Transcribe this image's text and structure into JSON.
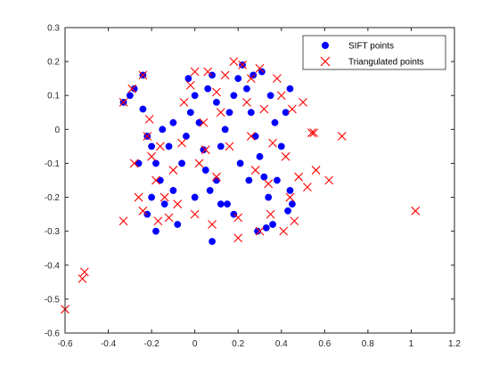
{
  "chart_data": {
    "type": "scatter",
    "title": "",
    "xlabel": "",
    "ylabel": "",
    "xlim": [
      -0.6,
      1.2
    ],
    "ylim": [
      -0.6,
      0.3
    ],
    "xticks": [
      -0.6,
      -0.4,
      -0.2,
      0,
      0.2,
      0.4,
      0.6,
      0.8,
      1,
      1.2
    ],
    "yticks": [
      -0.6,
      -0.5,
      -0.4,
      -0.3,
      -0.2,
      -0.1,
      0,
      0.1,
      0.2,
      0.3
    ],
    "xtick_labels": [
      "-0.6",
      "-0.4",
      "-0.2",
      "0",
      "0.2",
      "0.4",
      "0.6",
      "0.8",
      "1",
      "1.2"
    ],
    "ytick_labels": [
      "-0.6",
      "-0.5",
      "-0.4",
      "-0.3",
      "-0.2",
      "-0.1",
      "0",
      "0.1",
      "0.2",
      "0.3"
    ],
    "grid": false,
    "legend_position": "top-right",
    "series": [
      {
        "name": "SIFT points",
        "marker": "filled-circle",
        "color": "#0000ff",
        "points": [
          [
            -0.33,
            0.08
          ],
          [
            -0.3,
            0.1
          ],
          [
            -0.28,
            0.12
          ],
          [
            -0.24,
            0.16
          ],
          [
            -0.24,
            0.06
          ],
          [
            -0.22,
            -0.02
          ],
          [
            -0.2,
            -0.05
          ],
          [
            -0.18,
            -0.1
          ],
          [
            -0.16,
            -0.15
          ],
          [
            -0.2,
            -0.2
          ],
          [
            -0.22,
            -0.25
          ],
          [
            -0.18,
            -0.3
          ],
          [
            -0.14,
            -0.22
          ],
          [
            -0.1,
            -0.18
          ],
          [
            -0.08,
            -0.28
          ],
          [
            -0.06,
            -0.1
          ],
          [
            -0.04,
            -0.02
          ],
          [
            -0.02,
            0.05
          ],
          [
            0.0,
            0.1
          ],
          [
            0.02,
            0.02
          ],
          [
            0.04,
            -0.06
          ],
          [
            0.05,
            -0.12
          ],
          [
            0.07,
            -0.18
          ],
          [
            0.08,
            -0.33
          ],
          [
            0.1,
            -0.15
          ],
          [
            0.12,
            -0.05
          ],
          [
            0.14,
            0.0
          ],
          [
            0.16,
            0.05
          ],
          [
            0.18,
            0.1
          ],
          [
            0.2,
            0.15
          ],
          [
            0.22,
            0.19
          ],
          [
            0.24,
            0.12
          ],
          [
            0.26,
            0.05
          ],
          [
            0.28,
            -0.02
          ],
          [
            0.3,
            -0.08
          ],
          [
            0.32,
            -0.14
          ],
          [
            0.34,
            -0.2
          ],
          [
            0.29,
            -0.3
          ],
          [
            0.33,
            -0.29
          ],
          [
            0.36,
            -0.28
          ],
          [
            0.38,
            -0.15
          ],
          [
            0.4,
            -0.05
          ],
          [
            0.42,
            0.05
          ],
          [
            0.44,
            0.12
          ],
          [
            0.43,
            -0.24
          ],
          [
            0.44,
            -0.18
          ],
          [
            0.45,
            -0.22
          ],
          [
            -0.03,
            0.15
          ],
          [
            0.0,
            -0.2
          ],
          [
            0.06,
            0.12
          ],
          [
            0.1,
            0.08
          ],
          [
            0.15,
            -0.22
          ],
          [
            0.18,
            -0.25
          ],
          [
            0.21,
            -0.1
          ],
          [
            0.25,
            -0.15
          ],
          [
            0.27,
            0.16
          ],
          [
            0.31,
            0.17
          ],
          [
            0.35,
            0.1
          ],
          [
            0.37,
            0.02
          ],
          [
            -0.12,
            -0.05
          ],
          [
            -0.15,
            0.0
          ],
          [
            -0.26,
            -0.1
          ],
          [
            -0.1,
            0.02
          ],
          [
            0.08,
            0.16
          ],
          [
            0.12,
            -0.22
          ]
        ]
      },
      {
        "name": "Triangulated points",
        "marker": "x",
        "color": "#ff0000",
        "points": [
          [
            -0.6,
            -0.53
          ],
          [
            -0.52,
            -0.44
          ],
          [
            -0.51,
            -0.42
          ],
          [
            -0.33,
            -0.27
          ],
          [
            -0.33,
            0.08
          ],
          [
            -0.29,
            0.12
          ],
          [
            -0.24,
            0.16
          ],
          [
            -0.28,
            -0.1
          ],
          [
            -0.26,
            -0.2
          ],
          [
            -0.24,
            -0.24
          ],
          [
            -0.22,
            -0.02
          ],
          [
            -0.2,
            -0.08
          ],
          [
            -0.18,
            -0.15
          ],
          [
            -0.16,
            -0.05
          ],
          [
            -0.14,
            -0.2
          ],
          [
            -0.12,
            -0.26
          ],
          [
            -0.1,
            -0.12
          ],
          [
            -0.08,
            -0.22
          ],
          [
            -0.06,
            -0.04
          ],
          [
            -0.05,
            0.08
          ],
          [
            -0.02,
            0.13
          ],
          [
            0.0,
            -0.25
          ],
          [
            0.02,
            -0.1
          ],
          [
            0.04,
            0.02
          ],
          [
            0.06,
            0.17
          ],
          [
            0.08,
            -0.28
          ],
          [
            0.1,
            -0.14
          ],
          [
            0.12,
            0.05
          ],
          [
            0.14,
            0.16
          ],
          [
            0.16,
            -0.05
          ],
          [
            0.18,
            0.2
          ],
          [
            0.2,
            -0.26
          ],
          [
            0.2,
            -0.32
          ],
          [
            0.22,
            0.19
          ],
          [
            0.24,
            0.08
          ],
          [
            0.26,
            -0.02
          ],
          [
            0.28,
            -0.12
          ],
          [
            0.3,
            0.18
          ],
          [
            0.32,
            0.06
          ],
          [
            0.34,
            -0.16
          ],
          [
            0.35,
            -0.25
          ],
          [
            0.3,
            -0.3
          ],
          [
            0.36,
            -0.04
          ],
          [
            0.38,
            0.15
          ],
          [
            0.4,
            0.1
          ],
          [
            0.42,
            -0.08
          ],
          [
            0.44,
            -0.2
          ],
          [
            0.45,
            0.06
          ],
          [
            0.48,
            -0.14
          ],
          [
            0.5,
            0.08
          ],
          [
            0.52,
            -0.17
          ],
          [
            0.54,
            -0.01
          ],
          [
            0.55,
            -0.01
          ],
          [
            0.56,
            -0.12
          ],
          [
            0.62,
            -0.15
          ],
          [
            0.68,
            -0.02
          ],
          [
            1.02,
            -0.24
          ],
          [
            -0.17,
            -0.27
          ],
          [
            0.46,
            -0.27
          ],
          [
            0.41,
            -0.3
          ],
          [
            0.0,
            0.17
          ],
          [
            0.1,
            0.11
          ],
          [
            0.26,
            0.15
          ],
          [
            -0.21,
            0.03
          ],
          [
            0.05,
            -0.06
          ]
        ]
      }
    ]
  },
  "legend": {
    "items": [
      {
        "label": "SIFT points"
      },
      {
        "label": "Triangulated points"
      }
    ]
  }
}
